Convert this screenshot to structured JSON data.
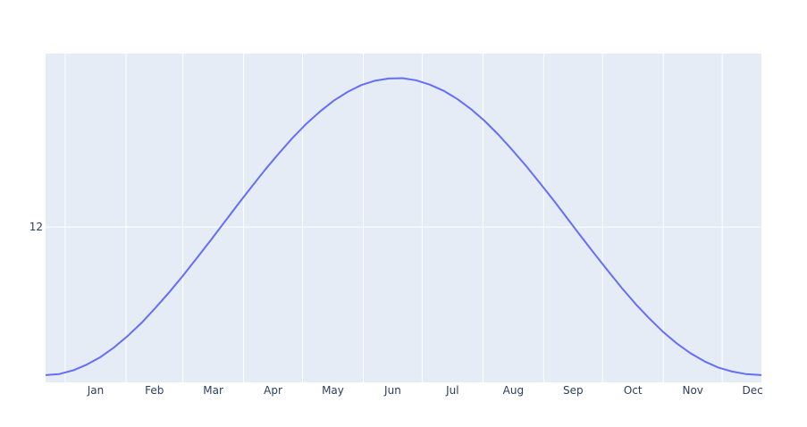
{
  "chart_data": {
    "type": "line",
    "title": "",
    "xlabel": "",
    "ylabel": "",
    "x_ticks": [
      "Jan",
      "Feb",
      "Mar",
      "Apr",
      "May",
      "Jun",
      "Jul",
      "Aug",
      "Sep",
      "Oct",
      "Nov",
      "Dec"
    ],
    "y_ticks": [
      12
    ],
    "y_tick_labels": [
      "12"
    ],
    "xlim": [
      "2023-12-22",
      "2024-12-21"
    ],
    "ylim": [
      7.7,
      16.8
    ],
    "grid": true,
    "legend": "none",
    "series": [
      {
        "color": "#636efa",
        "x": [
          "2023-12-22",
          "2023-12-29",
          "2024-01-05",
          "2024-01-12",
          "2024-01-19",
          "2024-01-26",
          "2024-02-02",
          "2024-02-09",
          "2024-02-16",
          "2024-02-23",
          "2024-03-01",
          "2024-03-08",
          "2024-03-15",
          "2024-03-22",
          "2024-03-29",
          "2024-04-05",
          "2024-04-12",
          "2024-04-19",
          "2024-04-26",
          "2024-05-03",
          "2024-05-10",
          "2024-05-17",
          "2024-05-24",
          "2024-05-31",
          "2024-06-07",
          "2024-06-14",
          "2024-06-21",
          "2024-06-28",
          "2024-07-05",
          "2024-07-12",
          "2024-07-19",
          "2024-07-26",
          "2024-08-02",
          "2024-08-09",
          "2024-08-16",
          "2024-08-23",
          "2024-08-30",
          "2024-09-06",
          "2024-09-13",
          "2024-09-20",
          "2024-09-27",
          "2024-10-04",
          "2024-10-11",
          "2024-10-18",
          "2024-10-25",
          "2024-11-01",
          "2024-11-08",
          "2024-11-15",
          "2024-11-22",
          "2024-11-29",
          "2024-12-06",
          "2024-12-13",
          "2024-12-21"
        ],
        "y": [
          7.9,
          7.93,
          8.03,
          8.19,
          8.4,
          8.67,
          8.99,
          9.35,
          9.76,
          10.19,
          10.65,
          11.13,
          11.62,
          12.12,
          12.62,
          13.11,
          13.59,
          14.04,
          14.47,
          14.86,
          15.2,
          15.5,
          15.74,
          15.93,
          16.05,
          16.11,
          16.12,
          16.06,
          15.94,
          15.77,
          15.54,
          15.26,
          14.93,
          14.55,
          14.13,
          13.69,
          13.22,
          12.74,
          12.24,
          11.74,
          11.25,
          10.77,
          10.3,
          9.86,
          9.46,
          9.09,
          8.77,
          8.5,
          8.28,
          8.11,
          8.0,
          7.93,
          7.9
        ]
      }
    ]
  }
}
